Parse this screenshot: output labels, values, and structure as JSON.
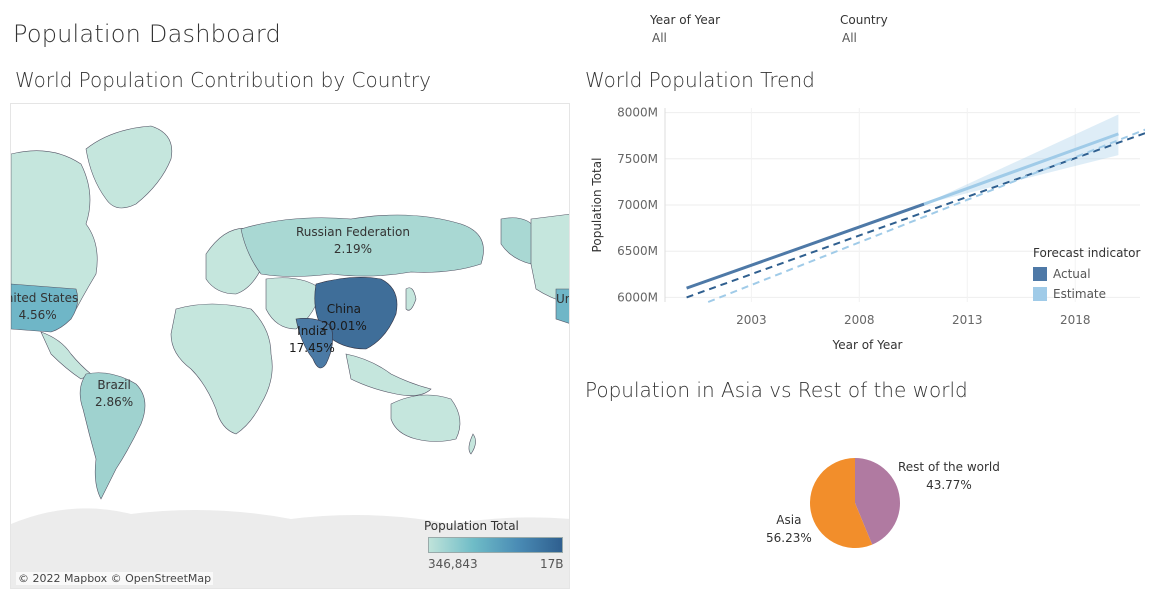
{
  "dashboard": {
    "title": "Population Dashboard"
  },
  "filters": [
    {
      "label": "Year of Year",
      "value": "All"
    },
    {
      "label": "Country",
      "value": "All"
    }
  ],
  "map": {
    "title": "World Population Contribution by Country",
    "labels": [
      {
        "name": "Russian Federation",
        "pct": "2.19%"
      },
      {
        "name": "China",
        "pct": "20.01%"
      },
      {
        "name": "India",
        "pct": "17.45%"
      },
      {
        "name": "United States",
        "pct": "4.56%"
      },
      {
        "name": "Brazil",
        "pct": "2.86%"
      },
      {
        "name": "Ur"
      }
    ],
    "legend": {
      "title": "Population Total",
      "min": "346,843",
      "max": "17B",
      "color_low": "#bfe3da",
      "color_high": "#2f5f8f"
    },
    "attribution": "© 2022 Mapbox © OpenStreetMap"
  },
  "trend": {
    "title": "World Population Trend",
    "legend": {
      "title": "Forecast indicator",
      "actual": "Actual",
      "estimate": "Estimate",
      "actual_color": "#4e79a7",
      "estimate_color": "#a0cbe8"
    }
  },
  "pie": {
    "title": "Population in Asia vs Rest of the world",
    "slices": [
      {
        "label": "Rest of the world",
        "pct": "43.77%",
        "value": 43.77,
        "color": "#b07aa1"
      },
      {
        "label": "Asia",
        "pct": "56.23%",
        "value": 56.23,
        "color": "#f28e2b"
      }
    ]
  },
  "chart_data": [
    {
      "type": "line",
      "title": "World Population Trend",
      "xlabel": "Year of Year",
      "ylabel": "Population Total",
      "x_ticks": [
        "2003",
        "2008",
        "2013",
        "2018"
      ],
      "y_ticks": [
        "6000M",
        "6500M",
        "7000M",
        "7500M",
        "8000M"
      ],
      "xlim": [
        1999,
        2021
      ],
      "ylim": [
        5950,
        8050
      ],
      "series": [
        {
          "name": "Actual",
          "style": "solid",
          "x": [
            2000,
            2011
          ],
          "y": [
            6100,
            7010
          ]
        },
        {
          "name": "Actual",
          "style": "dashed trend",
          "x": [
            2000,
            2021.5
          ],
          "y": [
            6000,
            7800
          ]
        },
        {
          "name": "Estimate",
          "style": "solid",
          "x": [
            2011,
            2020
          ],
          "y": [
            7010,
            7770
          ]
        },
        {
          "name": "Estimate",
          "style": "dashed trend",
          "x": [
            2001,
            2021.5
          ],
          "y": [
            5950,
            7840
          ]
        }
      ]
    },
    {
      "type": "pie",
      "title": "Population in Asia vs Rest of the world",
      "categories": [
        "Rest of the world",
        "Asia"
      ],
      "values": [
        43.77,
        56.23
      ]
    }
  ]
}
